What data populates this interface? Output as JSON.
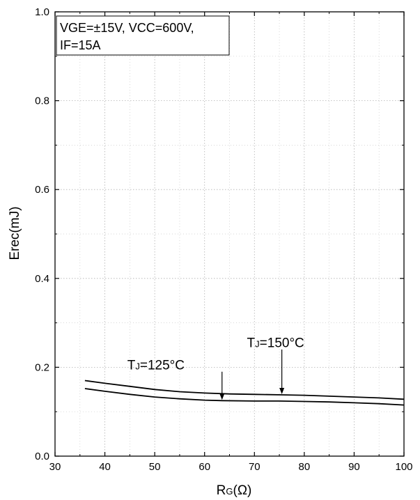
{
  "chart_data": {
    "type": "line",
    "title": "",
    "xlabel": "RG(Ω)",
    "xlabel_main": "R",
    "xlabel_sub": "G",
    "xlabel_unit": "(Ω)",
    "ylabel": "Erec(mJ)",
    "xlim": [
      30,
      100
    ],
    "ylim": [
      0.0,
      1.0
    ],
    "xticks": [
      "30",
      "40",
      "50",
      "60",
      "70",
      "80",
      "90",
      "100"
    ],
    "yticks": [
      "0.0",
      "0.2",
      "0.4",
      "0.6",
      "0.8",
      "1.0"
    ],
    "grid": true,
    "conditions_box": {
      "location": "top-left",
      "line1": "VGE=±15V, VCC=600V,",
      "line2": "IF=15A"
    },
    "series": [
      {
        "label": "TJ=125°C",
        "x": [
          36,
          40,
          45,
          50,
          55,
          60,
          63.5,
          70,
          75,
          80,
          85,
          90,
          95,
          100
        ],
        "y": [
          0.152,
          0.146,
          0.139,
          0.133,
          0.129,
          0.126,
          0.125,
          0.124,
          0.124,
          0.123,
          0.122,
          0.12,
          0.118,
          0.115
        ]
      },
      {
        "label": "TJ=150°C",
        "x": [
          36,
          40,
          45,
          50,
          55,
          60,
          65,
          70,
          75.5,
          80,
          85,
          90,
          95,
          100
        ],
        "y": [
          0.17,
          0.164,
          0.157,
          0.15,
          0.145,
          0.142,
          0.14,
          0.139,
          0.138,
          0.137,
          0.135,
          0.133,
          0.131,
          0.128
        ]
      }
    ],
    "annotations": [
      {
        "series": 0,
        "text": "TJ=125°C",
        "main": "T",
        "sub": "J",
        "rest": "=125°C",
        "arrow_x": 63.5,
        "arrow_y": 0.125,
        "text_x": 44.5,
        "text_y": 0.195,
        "arrow_top_y": 0.19
      },
      {
        "series": 1,
        "text": "TJ=150°C",
        "main": "T",
        "sub": "J",
        "rest": "=150°C",
        "arrow_x": 75.5,
        "arrow_y": 0.138,
        "text_x": 68.5,
        "text_y": 0.245,
        "arrow_top_y": 0.24
      }
    ]
  }
}
